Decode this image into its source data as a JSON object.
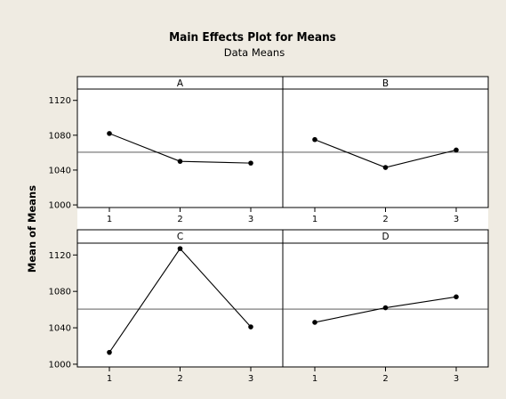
{
  "chart_data": {
    "type": "line",
    "title": "Main Effects Plot for Means",
    "subtitle": "Data Means",
    "ylabel": "Mean of Means",
    "xlabel": "",
    "grid": false,
    "ylim": [
      997,
      1133
    ],
    "yticks": [
      1000,
      1040,
      1080,
      1120
    ],
    "reference_line": 1060.5,
    "colors": {
      "background": "#efebe2",
      "plot": "#ffffff",
      "line": "#000000"
    },
    "panels": [
      {
        "label": "A",
        "x": [
          "1",
          "2",
          "3"
        ],
        "values": [
          1082,
          1050,
          1048
        ]
      },
      {
        "label": "B",
        "x": [
          "1",
          "2",
          "3"
        ],
        "values": [
          1075,
          1043,
          1063
        ]
      },
      {
        "label": "C",
        "x": [
          "1",
          "2",
          "3"
        ],
        "values": [
          1013,
          1127,
          1041
        ]
      },
      {
        "label": "D",
        "x": [
          "1",
          "2",
          "3"
        ],
        "values": [
          1046,
          1062,
          1074
        ]
      }
    ]
  }
}
